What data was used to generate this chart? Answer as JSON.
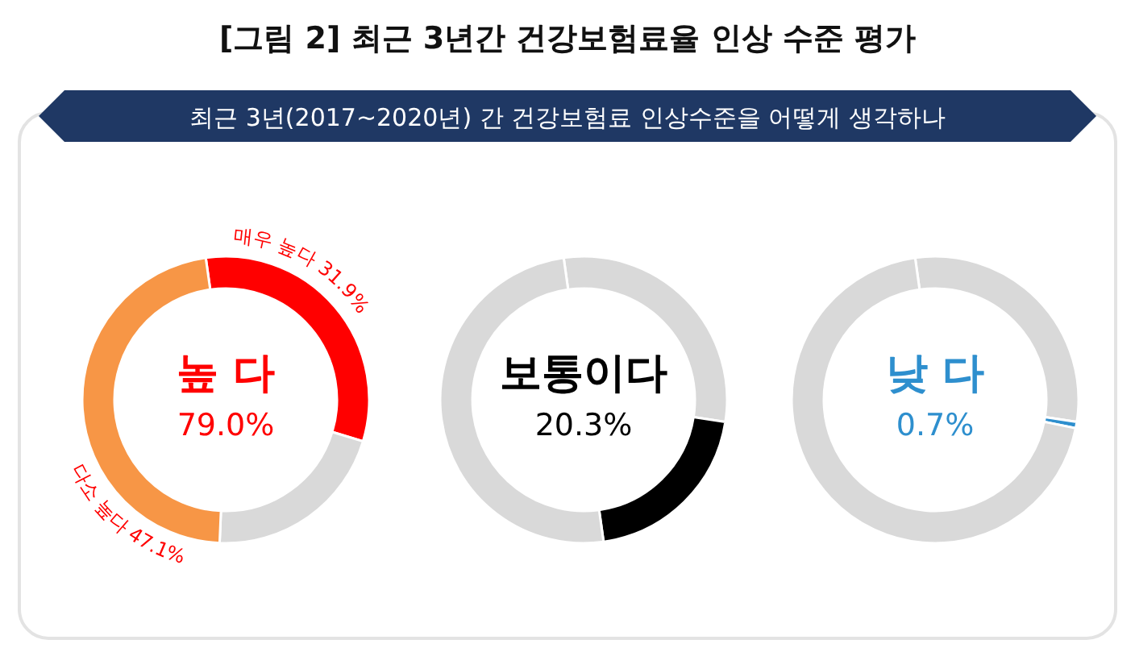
{
  "chart_data": [
    {
      "type": "donut",
      "title": "[그림 2] 최근 3년간 건강보험료율 인상 수준 평가",
      "subtitle": "최근 3년(2017~2020년) 간 건강보험료 인상수준을 어떻게 생각하나",
      "categories": [
        "매우 높다",
        null,
        "다소 높다"
      ],
      "values": [
        31.9,
        21.0,
        47.1
      ],
      "colors": [
        "#ff0000",
        "#d9d9d9",
        "#f79646"
      ],
      "value_labels": [
        "31.9%",
        null,
        "47.1%"
      ],
      "annotations": [
        "높 다",
        "79.0%"
      ]
    },
    {
      "type": "donut",
      "categories": [
        null,
        null,
        null
      ],
      "values": [
        29.7,
        20.3,
        50.0
      ],
      "colors": [
        "#d9d9d9",
        "#000000",
        "#d9d9d9"
      ],
      "annotations": [
        "보통이다",
        "20.3%"
      ]
    },
    {
      "type": "donut",
      "categories": [
        null,
        null,
        null
      ],
      "values": [
        29.7,
        0.7,
        69.6
      ],
      "colors": [
        "#d9d9d9",
        "#2e8fce",
        "#d9d9d9"
      ],
      "annotations": [
        "낮 다",
        "0.7%"
      ]
    }
  ]
}
